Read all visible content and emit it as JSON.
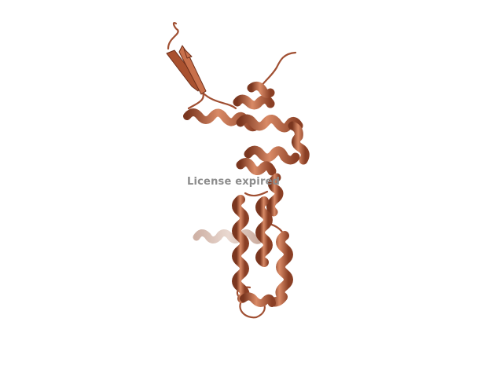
{
  "scene": {
    "subject": "protein-cartoon-ribbon",
    "colors": {
      "background": "#ffffff",
      "ribbon": "#b2583a",
      "ribbon_light": "#d98a66",
      "ribbon_dark": "#6e2f1b",
      "ribbon_faded": "#d9c2b8",
      "watermark": "#8c8c8c"
    }
  },
  "watermark": {
    "text": "License expired"
  }
}
